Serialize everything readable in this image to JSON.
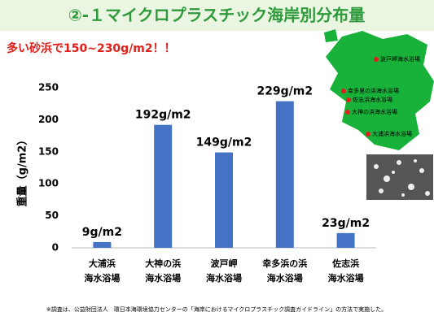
{
  "chart_data": {
    "type": "bar",
    "title": "②-１マイクロプラスチック海岸別分布量",
    "subtitle": "多い砂浜で150~230g/m2！！",
    "y_label": "重量（g/m2）",
    "categories": [
      [
        "大浦浜",
        "海水浴場"
      ],
      [
        "大神の浜",
        "海水浴場"
      ],
      [
        "波戸岬",
        "海水浴場"
      ],
      [
        "幸多浜の浜",
        "海水浴場"
      ],
      [
        "佐志浜",
        "海水浴場"
      ]
    ],
    "values": [
      9,
      192,
      149,
      229,
      23
    ],
    "value_labels": [
      "9g/m2",
      "192g/m2",
      "149g/m2",
      "229g/m2",
      "23g/m2"
    ],
    "color": "#4472c4",
    "ylim": [
      0,
      250
    ],
    "yticks": [
      0,
      50,
      100,
      150,
      200,
      250
    ],
    "grid": false
  },
  "map_labels": [
    "波戸岬海水浴場",
    "幸多里の浜海水浴場",
    "佐志浜海水浴場",
    "大神の浜海水浴場",
    "大浦浜海水浴場"
  ],
  "footnote": "※調査は、公益財団法人　環日本海環境協力センターの「海岸におけるマイクロプラスチック調査ガイドライン」の方法で実施した。"
}
